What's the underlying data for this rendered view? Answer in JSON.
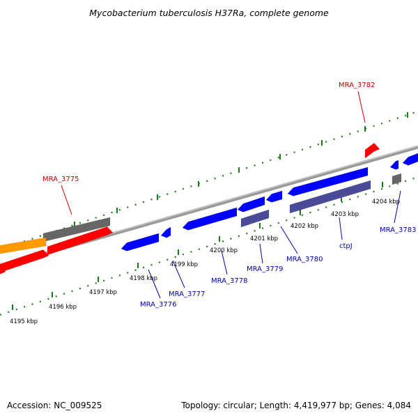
{
  "title": "Mycobacterium tuberculosis H37Ra, complete genome",
  "footer": {
    "accession": "Accession: NC_009525",
    "summary": "Topology: circular; Length: 4,419,977 bp; Genes: 4,084"
  },
  "tick_labels": [
    "4195 kbp",
    "4196 kbp",
    "4197 kbp",
    "4198 kbp",
    "4199 kbp",
    "4200 kbp",
    "4201 kbp",
    "4202 kbp",
    "4203 kbp",
    "4204 kbp"
  ],
  "gene_labels": [
    "MRA_3775",
    "MRA_3776",
    "MRA_3777",
    "MRA_3778",
    "MRA_3779",
    "MRA_3780",
    "ctpJ",
    "MRA_3782",
    "MRA_3783"
  ],
  "colors": {
    "forward_gene": "#0000ff",
    "reverse_gene": "#ff0000",
    "highlight_gene": "#ff9900",
    "gray_gene": "#666666",
    "purple_gene": "#4a4a99",
    "tick": "#1a7a1a",
    "backbone": "#999999",
    "label_blue": "#0000aa",
    "label_red": "#cc0000"
  }
}
